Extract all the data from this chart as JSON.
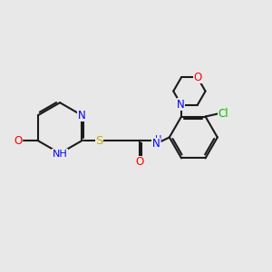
{
  "background_color": "#e8e8e8",
  "bond_color": "#1a1a1a",
  "bond_width": 1.5,
  "atom_colors": {
    "N": "#0000ff",
    "O": "#ff0000",
    "S": "#ccaa00",
    "Cl": "#00bb00",
    "C": "#1a1a1a",
    "H": "#777777"
  },
  "font_size": 8.5,
  "fig_width": 3.0,
  "fig_height": 3.0
}
